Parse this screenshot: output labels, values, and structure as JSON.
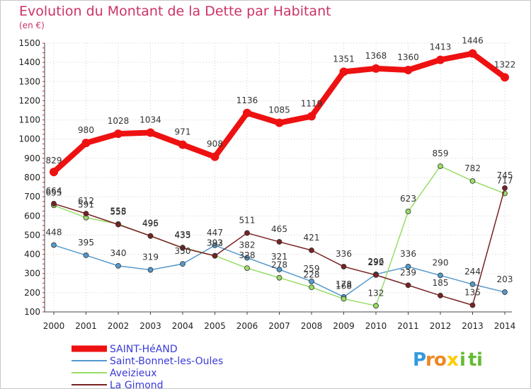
{
  "chart_data": {
    "type": "line",
    "title": "Evolution du Montant de la Dette par Habitant",
    "subtitle": "(en €)",
    "x": [
      "2000",
      "2001",
      "2002",
      "2003",
      "2004",
      "2005",
      "2006",
      "2007",
      "2008",
      "2009",
      "2010",
      "2011",
      "2012",
      "2013",
      "2014"
    ],
    "ylim": [
      100,
      1500
    ],
    "yticks": [
      100,
      200,
      300,
      400,
      500,
      600,
      700,
      800,
      900,
      1000,
      1100,
      1200,
      1300,
      1400,
      1500
    ],
    "grid": true,
    "legend_position": "bottom-left",
    "series": [
      {
        "name": "SAINT-HéAND",
        "color": "#ee1111",
        "values": [
          829,
          980,
          1028,
          1034,
          971,
          908,
          1136,
          1085,
          1119,
          1351,
          1368,
          1360,
          1413,
          1446,
          1322
        ]
      },
      {
        "name": "Saint-Bonnet-les-Oules",
        "color": "#5599cc",
        "values": [
          448,
          395,
          340,
          319,
          350,
          447,
          382,
          321,
          259,
          178,
          296,
          336,
          290,
          244,
          203
        ]
      },
      {
        "name": "Aveizieux",
        "color": "#99dd66",
        "values": [
          655,
          591,
          558,
          495,
          435,
          393,
          328,
          278,
          228,
          168,
          132,
          623,
          859,
          782,
          717
        ]
      },
      {
        "name": "La Gimond",
        "color": "#772222",
        "values": [
          664,
          612,
          555,
          496,
          433,
          392,
          511,
          465,
          421,
          336,
          292,
          239,
          185,
          135,
          745
        ]
      }
    ]
  },
  "brand": {
    "letters": [
      "P",
      "r",
      "o",
      "x",
      "i",
      "t",
      "i"
    ],
    "colors": [
      "#3399dd",
      "#ee8822",
      "#ee8822",
      "#ffcc00",
      "#66bb33",
      "#66bb33",
      "#66bb33"
    ]
  }
}
